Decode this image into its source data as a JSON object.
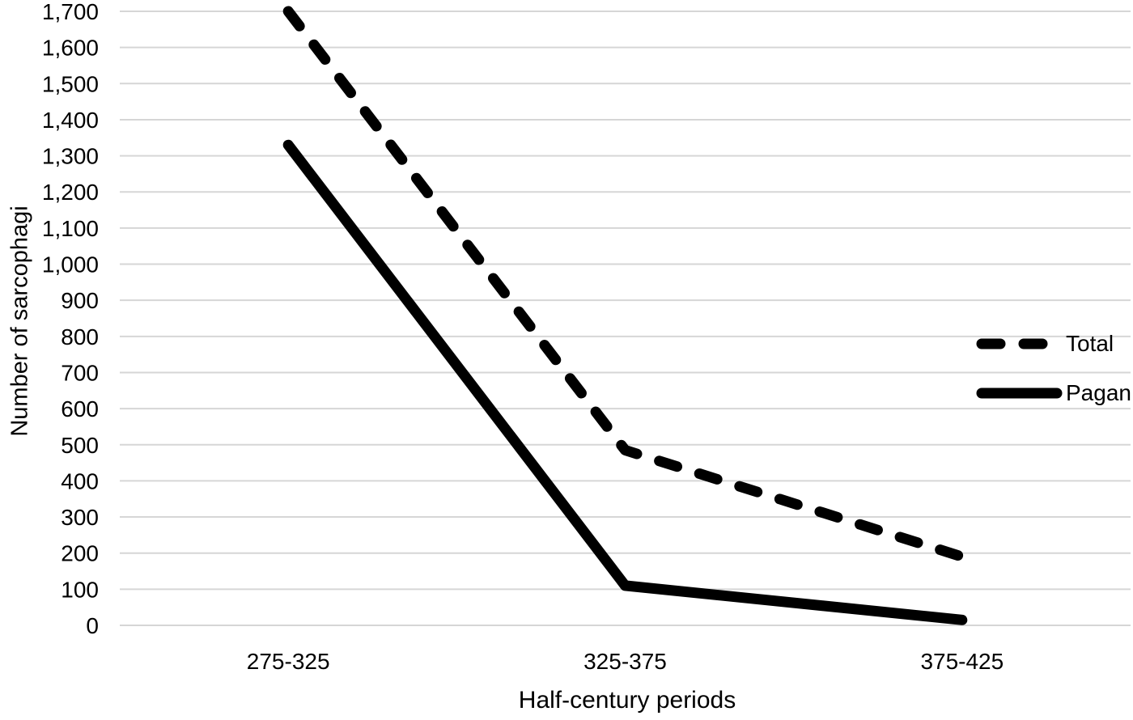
{
  "chart_data": {
    "type": "line",
    "title": "",
    "categories": [
      "275-325",
      "325-375",
      "375-425"
    ],
    "series": [
      {
        "name": "Total",
        "style": "dashed",
        "values": [
          1700,
          485,
          190
        ]
      },
      {
        "name": "Pagan",
        "style": "solid",
        "values": [
          1330,
          110,
          15
        ]
      }
    ],
    "xlabel": "Half-century periods",
    "ylabel": "Number of sarcophagi",
    "ylim": [
      0,
      1700
    ],
    "ytick_step": 100,
    "ytick_labels": [
      "0",
      "100",
      "200",
      "300",
      "400",
      "500",
      "600",
      "700",
      "800",
      "900",
      "1,000",
      "1,100",
      "1,200",
      "1,300",
      "1,400",
      "1,500",
      "1,600",
      "1,700"
    ],
    "grid": "horizontal-only",
    "legend_position": "right-inside",
    "colors": {
      "line": "#000000",
      "gridline": "#d6d6d6",
      "text": "#000000",
      "background": "#ffffff"
    }
  }
}
